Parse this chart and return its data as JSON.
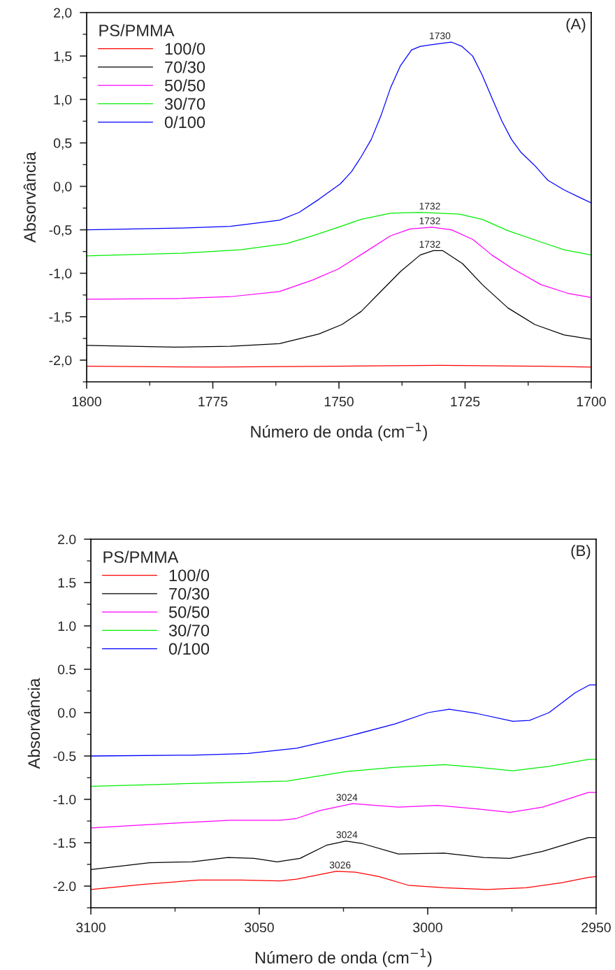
{
  "chart_data": [
    {
      "type": "line",
      "xlabel": "Número de onda (cm$^{−1}$)",
      "ylabel": "Absorvância",
      "legend_title": "PS/PMMA",
      "legend": "top left",
      "grid": false,
      "xlim": [
        1800,
        1700
      ],
      "xticks": [
        1800,
        1775,
        1750,
        1725,
        1700
      ],
      "ylim": [
        -2.25,
        2.0
      ],
      "yticks": [
        {
          "value": -2.0,
          "label": "-2,0"
        },
        {
          "value": -1.5,
          "label": "-1,5"
        },
        {
          "value": -1.0,
          "label": "-1,0"
        },
        {
          "value": -0.5,
          "label": "-0,5"
        },
        {
          "value": 0.0,
          "label": "0,0"
        },
        {
          "value": 0.5,
          "label": "0,5"
        },
        {
          "value": 1.0,
          "label": "1,0"
        },
        {
          "value": 1.5,
          "label": "1,5"
        },
        {
          "value": 2.0,
          "label": "2,0"
        }
      ],
      "series": [
        {
          "name": "100/0",
          "color": "#ff0000",
          "x": [
            1800,
            1775,
            1750,
            1730,
            1710,
            1700
          ],
          "values": [
            -2.07,
            -2.08,
            -2.07,
            -2.06,
            -2.07,
            -2.08
          ]
        },
        {
          "name": "70/30",
          "color": "#000000",
          "x": [
            1800,
            1782.4,
            1771.5,
            1761.8,
            1754.0,
            1749.4,
            1745.6,
            1741.7,
            1737.8,
            1733.9,
            1731.3,
            1729.4,
            1725.5,
            1721.6,
            1716.5,
            1711.2,
            1705.4,
            1700
          ],
          "values": [
            -1.83,
            -1.85,
            -1.84,
            -1.81,
            -1.7,
            -1.59,
            -1.44,
            -1.21,
            -0.98,
            -0.79,
            -0.74,
            -0.74,
            -0.89,
            -1.13,
            -1.4,
            -1.59,
            -1.71,
            -1.76
          ]
        },
        {
          "name": "50/50",
          "color": "#ff00ff",
          "x": [
            1800,
            1781.2,
            1771.5,
            1761.8,
            1755.3,
            1750.1,
            1744.9,
            1739.8,
            1735.9,
            1731.6,
            1727.7,
            1723.5,
            1719.7,
            1715.8,
            1710.0,
            1704.7,
            1700
          ],
          "values": [
            -1.3,
            -1.29,
            -1.27,
            -1.21,
            -1.08,
            -0.95,
            -0.76,
            -0.57,
            -0.49,
            -0.47,
            -0.5,
            -0.61,
            -0.79,
            -0.94,
            -1.13,
            -1.23,
            -1.28
          ]
        },
        {
          "name": "30/70",
          "color": "#00ee00",
          "x": [
            1800,
            1781.2,
            1769.5,
            1760.4,
            1755.3,
            1750.1,
            1745.6,
            1739.8,
            1733.9,
            1726.2,
            1721.6,
            1716.5,
            1710.0,
            1705.4,
            1700
          ],
          "values": [
            -0.8,
            -0.77,
            -0.73,
            -0.66,
            -0.57,
            -0.47,
            -0.38,
            -0.31,
            -0.3,
            -0.32,
            -0.38,
            -0.51,
            -0.64,
            -0.73,
            -0.79
          ]
        },
        {
          "name": "0/100",
          "color": "#0000ff",
          "x": [
            1800,
            1781.2,
            1771.5,
            1761.8,
            1757.9,
            1754.0,
            1749.7,
            1747.5,
            1745.6,
            1743.6,
            1741.7,
            1739.8,
            1737.8,
            1735.6,
            1733.9,
            1731.6,
            1727.7,
            1725.6,
            1723.5,
            1721.6,
            1719.7,
            1717.7,
            1715.8,
            1713.9,
            1711.2,
            1708.6,
            1705.4,
            1702.2,
            1700
          ],
          "values": [
            -0.5,
            -0.48,
            -0.46,
            -0.39,
            -0.3,
            -0.15,
            0.03,
            0.17,
            0.34,
            0.54,
            0.81,
            1.13,
            1.39,
            1.57,
            1.61,
            1.63,
            1.66,
            1.61,
            1.5,
            1.28,
            1.02,
            0.75,
            0.54,
            0.39,
            0.24,
            0.07,
            -0.04,
            -0.13,
            -0.19
          ]
        }
      ],
      "annotations": [
        "(A)",
        {
          "text": "1730",
          "x": 1730,
          "y": 1.66
        },
        {
          "text": "1732",
          "x": 1732,
          "y": -0.3
        },
        {
          "text": "1732",
          "x": 1732,
          "y": -0.47
        },
        {
          "text": "1732",
          "x": 1732,
          "y": -0.74
        }
      ]
    },
    {
      "type": "line",
      "xlabel": "Número de onda (cm$^{−1}$)",
      "ylabel": "Absorvância",
      "legend_title": "PS/PMMA",
      "legend": "top left",
      "grid": false,
      "xlim": [
        3100,
        2950
      ],
      "xticks": [
        3100,
        3050,
        3000,
        2950
      ],
      "ylim": [
        -2.25,
        2.0
      ],
      "yticks": [
        {
          "value": -2.0,
          "label": "-2.0"
        },
        {
          "value": -1.5,
          "label": "-1.5"
        },
        {
          "value": -1.0,
          "label": "-1.0"
        },
        {
          "value": -0.5,
          "label": "-0.5"
        },
        {
          "value": 0.0,
          "label": "0.0"
        },
        {
          "value": 0.5,
          "label": "0.5"
        },
        {
          "value": 1.0,
          "label": "1.0"
        },
        {
          "value": 1.5,
          "label": "1.5"
        },
        {
          "value": 2.0,
          "label": "2.0"
        }
      ],
      "series": [
        {
          "name": "100/0",
          "color": "#ff0000",
          "x": [
            3100,
            3084.6,
            3068.0,
            3055.4,
            3043.8,
            3038.9,
            3027.2,
            3021.4,
            3014.5,
            3005.8,
            2995.1,
            2982.4,
            2970.8,
            2960.1,
            2952.3,
            2950
          ],
          "values": [
            -2.04,
            -1.98,
            -1.93,
            -1.93,
            -1.94,
            -1.92,
            -1.83,
            -1.84,
            -1.89,
            -1.99,
            -2.02,
            -2.04,
            -2.02,
            -1.96,
            -1.9,
            -1.89
          ]
        },
        {
          "name": "70/30",
          "color": "#000000",
          "x": [
            3100,
            3082.6,
            3070.0,
            3059.3,
            3051.5,
            3044.7,
            3037.9,
            3030.1,
            3024.3,
            3019.4,
            3008.7,
            2995.1,
            2983.4,
            2975.6,
            2965.9,
            2952.3,
            2950
          ],
          "values": [
            -1.81,
            -1.73,
            -1.72,
            -1.67,
            -1.68,
            -1.72,
            -1.68,
            -1.53,
            -1.48,
            -1.51,
            -1.63,
            -1.62,
            -1.67,
            -1.68,
            -1.6,
            -1.44,
            -1.44
          ]
        },
        {
          "name": "50/50",
          "color": "#ff00ff",
          "x": [
            3100,
            3072.9,
            3058.3,
            3043.8,
            3038.9,
            3032.1,
            3022.3,
            3008.7,
            2997.0,
            2985.4,
            2975.6,
            2965.9,
            2952.3,
            2950
          ],
          "values": [
            -1.33,
            -1.27,
            -1.24,
            -1.24,
            -1.22,
            -1.13,
            -1.05,
            -1.09,
            -1.07,
            -1.11,
            -1.15,
            -1.09,
            -0.92,
            -0.92
          ]
        },
        {
          "name": "30/70",
          "color": "#00ee00",
          "x": [
            3100,
            3072.9,
            3041.8,
            3024.3,
            3009.7,
            2995.1,
            2985.4,
            2974.7,
            2964.0,
            2952.3,
            2950
          ],
          "values": [
            -0.85,
            -0.82,
            -0.79,
            -0.68,
            -0.63,
            -0.6,
            -0.63,
            -0.67,
            -0.62,
            -0.54,
            -0.54
          ]
        },
        {
          "name": "0/100",
          "color": "#0000ff",
          "x": [
            3100,
            3070.0,
            3053.4,
            3038.9,
            3024.3,
            3009.7,
            2999.9,
            2993.6,
            2985.4,
            2974.7,
            2969.8,
            2964.0,
            2956.2,
            2951.9,
            2950
          ],
          "values": [
            -0.5,
            -0.49,
            -0.47,
            -0.41,
            -0.28,
            -0.13,
            0.0,
            0.04,
            -0.01,
            -0.1,
            -0.09,
            0.0,
            0.23,
            0.32,
            0.32
          ]
        }
      ],
      "annotations": [
        "(B)",
        {
          "text": "3024",
          "x": 3024,
          "y": -1.05
        },
        {
          "text": "3024",
          "x": 3024,
          "y": -1.48
        },
        {
          "text": "3026",
          "x": 3026,
          "y": -1.83
        }
      ]
    }
  ]
}
